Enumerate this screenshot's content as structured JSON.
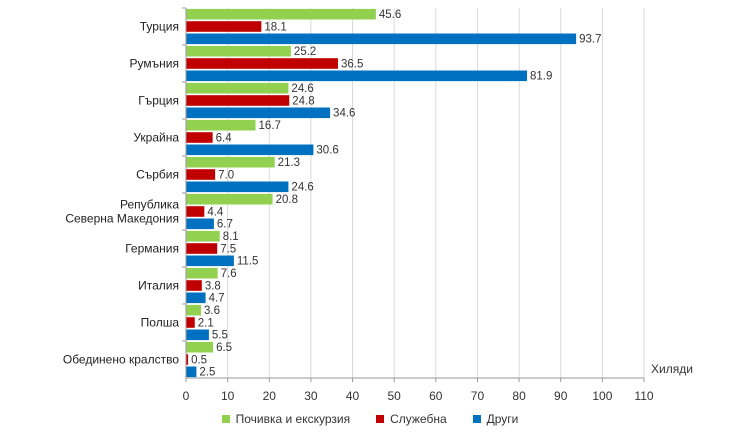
{
  "chart_data": {
    "type": "bar",
    "orientation": "horizontal",
    "categories": [
      "Турция",
      "Румъния",
      "Гърция",
      "Украйна",
      "Сърбия",
      "Република Северна Македония",
      "Германия",
      "Италия",
      "Полша",
      "Обединено кралство"
    ],
    "category_lines": [
      [
        "Турция"
      ],
      [
        "Румъния"
      ],
      [
        "Гърция"
      ],
      [
        "Украйна"
      ],
      [
        "Сърбия"
      ],
      [
        "Република",
        "Северна Македония"
      ],
      [
        "Германия"
      ],
      [
        "Италия"
      ],
      [
        "Полша"
      ],
      [
        "Обединено кралство"
      ]
    ],
    "series": [
      {
        "name": "Почивка и екскурзия",
        "color": "#92d050",
        "values": [
          45.6,
          25.2,
          24.6,
          16.7,
          21.3,
          20.8,
          8.1,
          7.6,
          3.6,
          6.5
        ]
      },
      {
        "name": "Служебна",
        "color": "#c00000",
        "values": [
          18.1,
          36.5,
          24.8,
          6.4,
          7.0,
          4.4,
          7.5,
          3.8,
          2.1,
          0.5
        ]
      },
      {
        "name": "Други",
        "color": "#0070c0",
        "values": [
          93.7,
          81.9,
          34.6,
          30.6,
          24.6,
          6.7,
          11.5,
          4.7,
          5.5,
          2.5
        ]
      }
    ],
    "value_labels": [
      [
        "45.6",
        "25.2",
        "24.6",
        "16.7",
        "21.3",
        "20.8",
        "8.1",
        "7.6",
        "3.6",
        "6.5"
      ],
      [
        "18.1",
        "36.5",
        "24.8",
        "6.4",
        "7.0",
        "4.4",
        "7.5",
        "3.8",
        "2.1",
        "0.5"
      ],
      [
        "93.7",
        "81.9",
        "34.6",
        "30.6",
        "24.6",
        "6.7",
        "11.5",
        "4.7",
        "5.5",
        "2.5"
      ]
    ],
    "xticks": [
      "0",
      "10",
      "20",
      "30",
      "40",
      "50",
      "60",
      "70",
      "80",
      "90",
      "100",
      "110"
    ],
    "xlim": [
      0,
      110
    ],
    "xlabel": "Хиляди",
    "grid": true,
    "legend_position": "bottom"
  }
}
